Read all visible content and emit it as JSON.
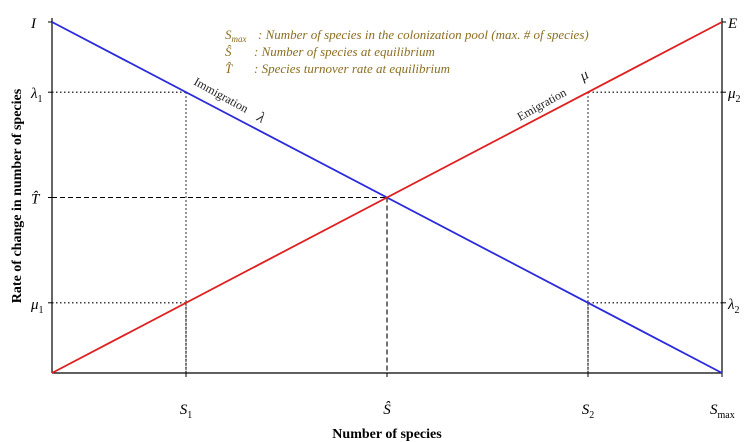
{
  "chart_data": {
    "type": "line",
    "xlabel": "Number of species",
    "ylabel": "Rate of change in number of species",
    "xlim": [
      0,
      1
    ],
    "ylim": [
      0,
      1
    ],
    "series": [
      {
        "name": "Immigration",
        "symbol": "λ",
        "color": "#2b2bdd",
        "x": [
          0,
          1
        ],
        "y": [
          1,
          0
        ]
      },
      {
        "name": "Emigration",
        "symbol": "μ",
        "color": "#e02020",
        "x": [
          0,
          1
        ],
        "y": [
          0,
          1
        ]
      }
    ],
    "x_ticks": [
      {
        "main": "S",
        "sub": "1",
        "value": 0.2
      },
      {
        "main": "Ŝ",
        "sub": "",
        "value": 0.5
      },
      {
        "main": "S",
        "sub": "2",
        "value": 0.8
      },
      {
        "main": "S",
        "sub": "max",
        "value": 1.0
      }
    ],
    "left_ticks": [
      {
        "main": "I",
        "sub": "",
        "value": 1.0
      },
      {
        "main": "λ",
        "sub": "1",
        "value": 0.8
      },
      {
        "main": "T̂",
        "sub": "",
        "value": 0.5
      },
      {
        "main": "μ",
        "sub": "1",
        "value": 0.2
      }
    ],
    "right_ticks": [
      {
        "main": "E",
        "sub": "",
        "value": 1.0
      },
      {
        "main": "μ",
        "sub": "2",
        "value": 0.8
      },
      {
        "main": "λ",
        "sub": "2",
        "value": 0.2
      }
    ],
    "guides": [
      {
        "x": 0.2,
        "y": 0.8,
        "style": "dotted",
        "side": "left"
      },
      {
        "x": 0.2,
        "y": 0.2,
        "style": "dotted",
        "side": "left"
      },
      {
        "x": 0.5,
        "y": 0.5,
        "style": "dashed",
        "side": "left"
      },
      {
        "x": 0.8,
        "y": 0.8,
        "style": "dotted",
        "side": "right"
      },
      {
        "x": 0.8,
        "y": 0.2,
        "style": "dotted",
        "side": "right"
      }
    ],
    "legend": [
      {
        "sym": "S",
        "sub": "max",
        "text": ": Number of species in the colonization pool (max. # of species)"
      },
      {
        "sym": "Ŝ",
        "sub": "",
        "text": ": Number of species at equilibrium"
      },
      {
        "sym": "T̂",
        "sub": "",
        "text": ": Species turnover rate at equilibrium"
      }
    ],
    "legend_color": "#8a6d1f"
  }
}
